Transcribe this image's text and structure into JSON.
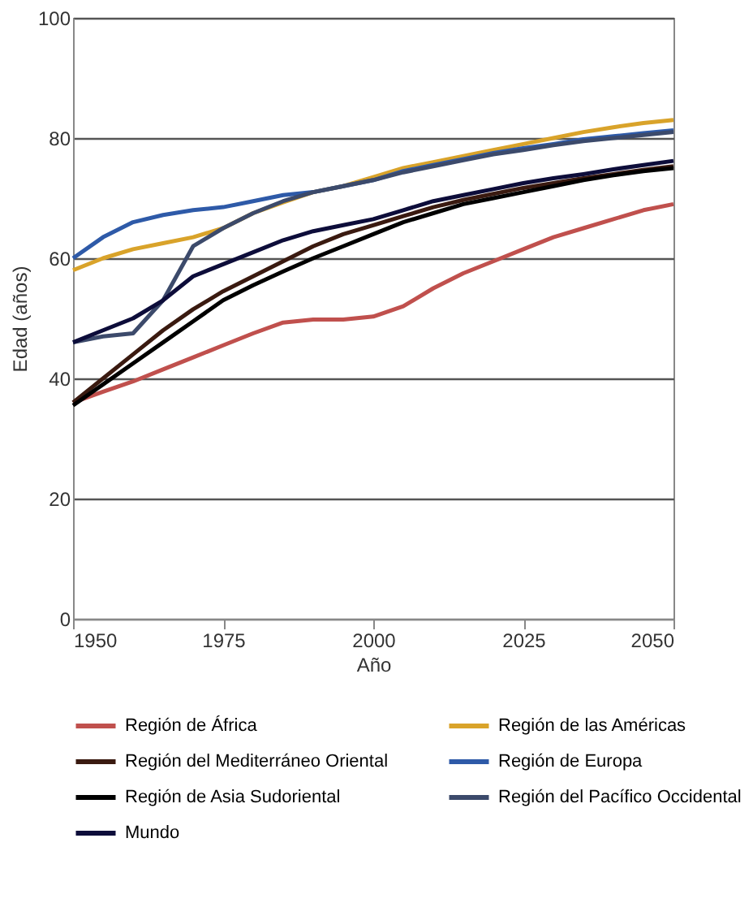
{
  "chart_data": {
    "type": "line",
    "xlabel": "Año",
    "ylabel": "Edad (años)",
    "x": [
      1950,
      1955,
      1960,
      1965,
      1970,
      1975,
      1980,
      1985,
      1990,
      1995,
      2000,
      2005,
      2010,
      2015,
      2020,
      2025,
      2030,
      2035,
      2040,
      2045,
      2050
    ],
    "xlim": [
      1950,
      2050
    ],
    "xticks": [
      1950,
      1975,
      2000,
      2025,
      2050
    ],
    "ylim": [
      0,
      100
    ],
    "yticks": [
      0,
      20,
      40,
      60,
      80,
      100
    ],
    "grid": "y",
    "legend": "bottom",
    "line_style": "solid",
    "marker": "none",
    "series": [
      {
        "name": "Región de África",
        "color": "#c0504d",
        "values": [
          36,
          37.8,
          39.5,
          41.5,
          43.5,
          45.5,
          47.5,
          49.3,
          49.8,
          49.8,
          50.3,
          52,
          55,
          57.5,
          59.5,
          61.5,
          63.5,
          65,
          66.5,
          68,
          69
        ]
      },
      {
        "name": "Región de las Américas",
        "color": "#d9a32a",
        "values": [
          58,
          60,
          61.5,
          62.5,
          63.5,
          65,
          67.5,
          69.3,
          71,
          72,
          73.5,
          75,
          76,
          77,
          78,
          79,
          80,
          81,
          81.8,
          82.5,
          83
        ]
      },
      {
        "name": "Región del Mediterráneo Oriental",
        "color": "#3a1a10",
        "values": [
          36,
          40,
          44,
          48,
          51.5,
          54.5,
          57,
          59.5,
          62,
          64,
          65.5,
          67,
          68.5,
          69.7,
          70.7,
          71.7,
          72.5,
          73.3,
          74,
          74.7,
          75.3
        ]
      },
      {
        "name": "Región de Europa",
        "color": "#2e5aa8",
        "values": [
          60,
          63.5,
          66,
          67.2,
          68,
          68.5,
          69.5,
          70.5,
          71,
          72,
          73,
          74.5,
          75.5,
          76.5,
          77.5,
          78.3,
          79,
          79.8,
          80.3,
          80.8,
          81.3
        ]
      },
      {
        "name": "Región de Asia Sudoriental",
        "color": "#000000",
        "values": [
          35.5,
          39,
          42.5,
          46,
          49.5,
          53,
          55.5,
          57.8,
          60,
          62,
          64,
          66,
          67.5,
          69,
          70,
          71,
          72,
          73,
          73.8,
          74.5,
          75
        ]
      },
      {
        "name": "Región del Pacífico Occidental",
        "color": "#3c4a6b",
        "values": [
          46,
          47,
          47.5,
          53,
          62,
          65,
          67.5,
          69.5,
          71,
          72,
          73,
          74.3,
          75.3,
          76.3,
          77.3,
          78,
          78.8,
          79.5,
          80,
          80.5,
          81
        ]
      },
      {
        "name": "Mundo",
        "color": "#0d0d3a",
        "values": [
          46,
          48,
          50,
          53,
          57,
          59,
          61,
          63,
          64.5,
          65.5,
          66.5,
          68,
          69.5,
          70.5,
          71.5,
          72.5,
          73.3,
          74,
          74.8,
          75.5,
          76.2
        ]
      }
    ]
  }
}
